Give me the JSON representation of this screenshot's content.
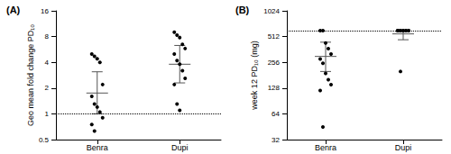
{
  "chart_data": [
    {
      "type": "scatter",
      "title": "(A)",
      "y_label": "Geo mean fold change PD₁₀",
      "categories": [
        "Benra",
        "Dupi"
      ],
      "values": [
        [
          5.0,
          4.7,
          4.4,
          4.0,
          2.2,
          1.6,
          1.3,
          1.2,
          1.05,
          0.9,
          0.75,
          0.63
        ],
        [
          9.0,
          8.3,
          7.8,
          6.5,
          5.8,
          5.0,
          4.2,
          3.8,
          3.2,
          2.6,
          2.2,
          1.3,
          1.1
        ]
      ],
      "mean": [
        1.75,
        3.8
      ],
      "ci_lower": [
        1.0,
        2.3
      ],
      "ci_upper": [
        3.1,
        6.3
      ],
      "reference_line": 1,
      "log": "y",
      "ylim": [
        0.5,
        16
      ],
      "yticks": [
        0.5,
        1,
        2,
        4,
        8,
        16
      ],
      "color": "#000000"
    },
    {
      "type": "scatter",
      "title": "(B)",
      "y_label": "week 12 PD₁₀ (mg)",
      "categories": [
        "Benra",
        "Dupi"
      ],
      "values": [
        [
          600,
          600,
          430,
          370,
          320,
          280,
          250,
          190,
          160,
          140,
          120,
          45
        ],
        [
          600,
          600,
          600,
          600,
          600,
          600,
          600,
          600,
          600,
          600,
          600,
          200
        ]
      ],
      "mean": [
        300,
        550
      ],
      "ci_lower": [
        200,
        470
      ],
      "ci_upper": [
        440,
        600
      ],
      "reference_line": 600,
      "log": "y",
      "ylim": [
        32,
        1024
      ],
      "yticks": [
        32,
        64,
        128,
        256,
        512,
        1024
      ],
      "color": "#000000"
    }
  ]
}
